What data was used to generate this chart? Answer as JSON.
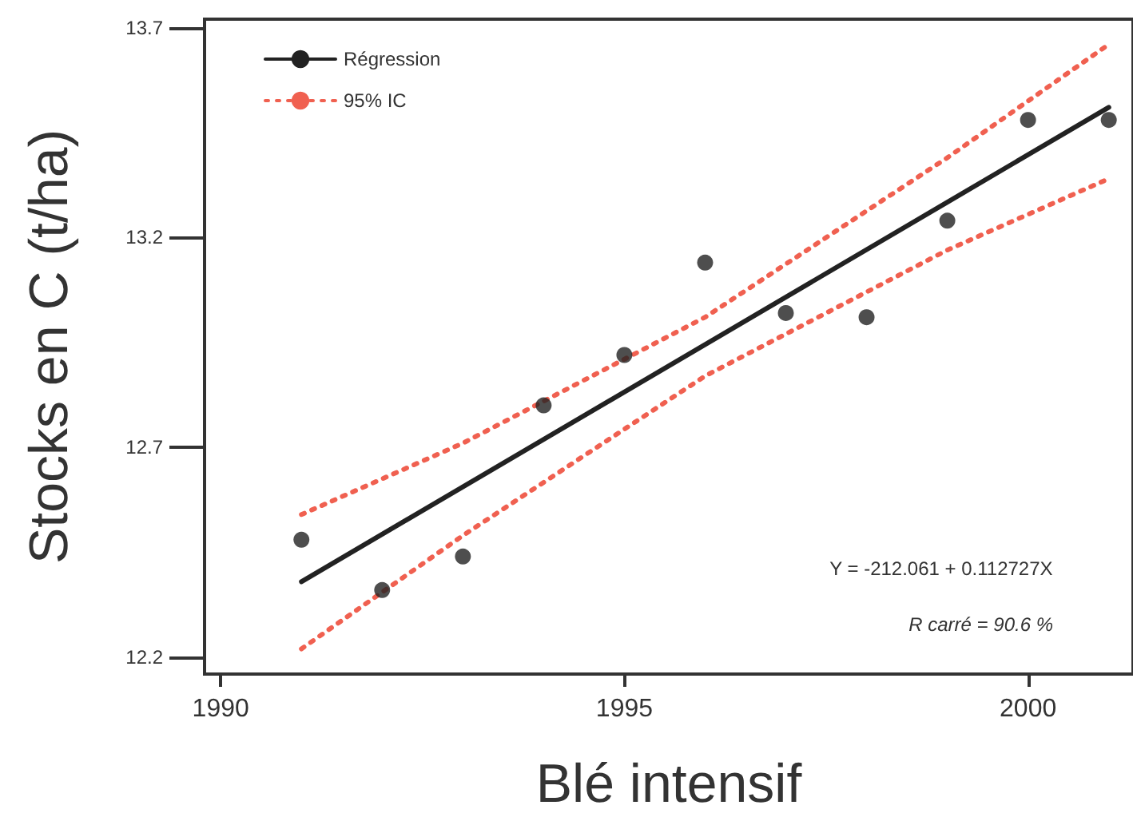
{
  "chart_data": {
    "type": "scatter",
    "xlabel": "Blé intensif",
    "ylabel": "Stocks en C (t/ha)",
    "xlim": [
      1989.8,
      2001.3
    ],
    "xticks": [
      1990,
      1995,
      2000
    ],
    "ylim": [
      12.16,
      13.72
    ],
    "yticks": [
      12.2,
      12.7,
      13.2,
      13.7
    ],
    "grid": false,
    "legend": "top left",
    "marker": "circle",
    "series": [
      {
        "color": "#222222",
        "x": [
          1991,
          1992,
          1993,
          1994,
          1995,
          1996,
          1997,
          1998,
          1999,
          2000,
          2001
        ],
        "values": [
          12.48,
          12.36,
          12.44,
          12.8,
          12.92,
          13.14,
          13.02,
          13.01,
          13.24,
          13.48,
          13.48
        ]
      },
      {
        "type": "line",
        "name": "Régression",
        "color": "#222222",
        "marker": "none",
        "line_style": "solid",
        "x": [
          1991,
          2001
        ],
        "values": [
          12.38,
          13.51
        ]
      },
      {
        "type": "line",
        "name": "95% IC",
        "color": "#f06050",
        "marker": "none",
        "line_style": "dotted",
        "x": [
          1991,
          1993,
          1996,
          1999,
          2001
        ],
        "values": [
          12.54,
          12.71,
          13.01,
          13.39,
          13.66
        ]
      },
      {
        "type": "line",
        "color": "#f06050",
        "marker": "none",
        "line_style": "dotted",
        "x": [
          1991,
          1993,
          1996,
          1999,
          2001
        ],
        "values": [
          12.22,
          12.49,
          12.87,
          13.17,
          13.34
        ]
      }
    ],
    "annotations": [
      "Y = -212.061 + 0.112727X",
      "R carré = 90.6 %"
    ]
  }
}
